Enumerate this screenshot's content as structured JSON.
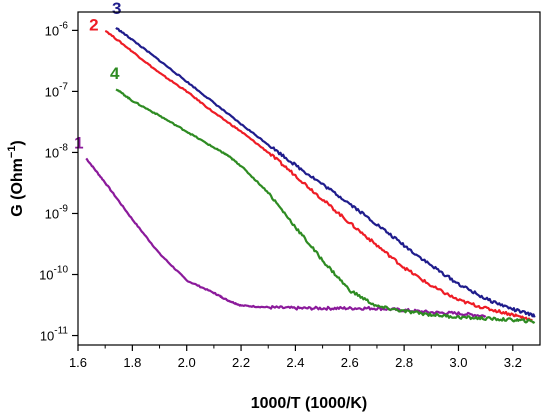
{
  "chart_data": {
    "type": "line",
    "title": "",
    "xlabel": "1000/T (1000/K)",
    "ylabel": "G (Ohm",
    "ylabel_superscript": "−1",
    "ylabel_suffix": ")",
    "xlim": [
      1.6,
      3.3
    ],
    "ylim": [
      7e-12,
      2e-06
    ],
    "yscale": "log",
    "x_ticks": [
      "1.6",
      "1.8",
      "2.0",
      "2.2",
      "2.4",
      "2.6",
      "2.8",
      "3.0",
      "3.2"
    ],
    "x_tick_values": [
      1.6,
      1.8,
      2.0,
      2.2,
      2.4,
      2.6,
      2.8,
      3.0,
      3.2
    ],
    "y_tick_values": [
      1e-11,
      1e-10,
      1e-09,
      1e-08,
      1e-07,
      1e-06
    ],
    "y_ticks": [
      {
        "base": "10",
        "exp": "-11"
      },
      {
        "base": "10",
        "exp": "-10"
      },
      {
        "base": "10",
        "exp": "-9"
      },
      {
        "base": "10",
        "exp": "-8"
      },
      {
        "base": "10",
        "exp": "-7"
      },
      {
        "base": "10",
        "exp": "-6"
      }
    ],
    "grid": false,
    "legend": "none",
    "series": [
      {
        "name": "1",
        "color": "#8B1A9B",
        "x": [
          1.63,
          1.7,
          1.8,
          1.9,
          2.0,
          2.1,
          2.15,
          2.2,
          2.3,
          2.4,
          2.5,
          2.6,
          2.7,
          2.8,
          2.9,
          3.0,
          3.1
        ],
        "y": [
          8e-09,
          3.2e-09,
          8e-10,
          2.2e-10,
          8e-11,
          5e-11,
          3.8e-11,
          3.1e-11,
          2.9e-11,
          2.8e-11,
          2.8e-11,
          2.8e-11,
          2.8e-11,
          2.6e-11,
          2.4e-11,
          2.3e-11,
          2.1e-11
        ]
      },
      {
        "name": "2",
        "color": "#EE1C25",
        "x": [
          1.7,
          1.8,
          1.9,
          2.0,
          2.1,
          2.2,
          2.3,
          2.4,
          2.5,
          2.6,
          2.7,
          2.8,
          2.9,
          3.0,
          3.1,
          3.2,
          3.27
        ],
        "y": [
          1e-06,
          4.5e-07,
          2e-07,
          1e-07,
          4.5e-08,
          2.2e-08,
          1e-08,
          4.2e-09,
          1.7e-09,
          7e-10,
          3e-10,
          1.3e-10,
          6.5e-11,
          3.8e-11,
          2.8e-11,
          2.2e-11,
          1.8e-11
        ]
      },
      {
        "name": "3",
        "color": "#1F1C8C",
        "x": [
          1.74,
          1.8,
          1.9,
          2.0,
          2.1,
          2.2,
          2.3,
          2.4,
          2.5,
          2.6,
          2.7,
          2.8,
          2.9,
          3.0,
          3.1,
          3.2,
          3.28
        ],
        "y": [
          1.1e-06,
          7e-07,
          3.2e-07,
          1.45e-07,
          6.5e-08,
          2.9e-08,
          1.35e-08,
          6.2e-09,
          3e-09,
          1.45e-09,
          6.6e-10,
          3e-10,
          1.4e-10,
          7e-11,
          4e-11,
          2.7e-11,
          2.1e-11
        ]
      },
      {
        "name": "4",
        "color": "#2E8B22",
        "x": [
          1.74,
          1.8,
          1.9,
          2.0,
          2.1,
          2.15,
          2.2,
          2.3,
          2.4,
          2.5,
          2.6,
          2.7,
          2.8,
          2.9,
          3.0,
          3.1,
          3.2,
          3.28
        ],
        "y": [
          1.1e-07,
          7e-08,
          4e-08,
          2.2e-08,
          1.2e-08,
          9e-09,
          6e-09,
          2.2e-09,
          6e-10,
          1.7e-10,
          5.5e-11,
          3e-11,
          2.5e-11,
          2.2e-11,
          2e-11,
          1.9e-11,
          1.8e-11,
          1.7e-11
        ]
      }
    ]
  }
}
